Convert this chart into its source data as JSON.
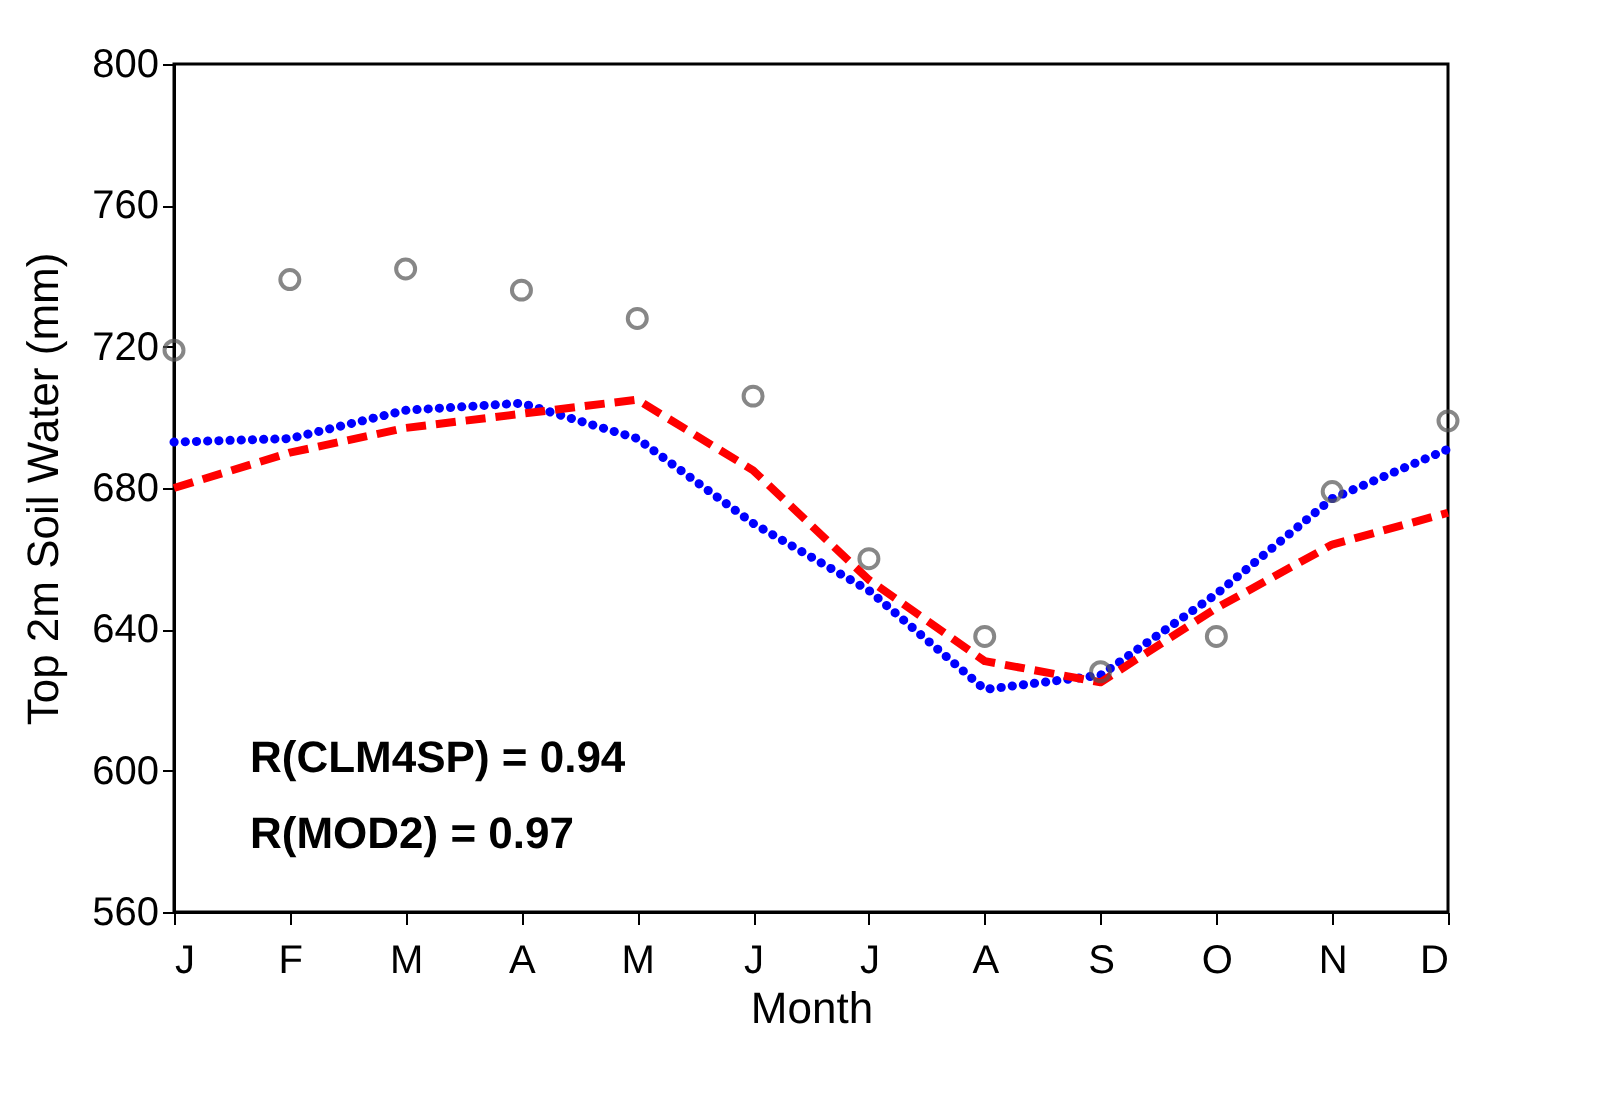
{
  "chart_data": {
    "type": "line",
    "xlabel": "Month",
    "ylabel": "Top 2m Soil Water (mm)",
    "categories": [
      "J",
      "F",
      "M",
      "A",
      "M",
      "J",
      "J",
      "A",
      "S",
      "O",
      "N",
      "D"
    ],
    "ylim": [
      560,
      800
    ],
    "yticks": [
      560,
      600,
      640,
      680,
      720,
      760,
      800
    ],
    "grid": false,
    "series": [
      {
        "type": "scatter",
        "color": "#555555",
        "marker": "circle",
        "values": [
          719,
          739,
          742,
          736,
          728,
          706,
          660,
          638,
          628,
          638,
          679,
          699
        ]
      },
      {
        "color": "#0000ff",
        "line_style": "dotted",
        "values": [
          693,
          694,
          702,
          704,
          694,
          670,
          651,
          623,
          627,
          650,
          677,
          691
        ]
      },
      {
        "color": "#ff0000",
        "line_style": "dashed",
        "values": [
          680,
          690,
          697,
          701,
          705,
          685,
          654,
          631,
          625,
          646,
          664,
          673
        ]
      }
    ],
    "annotations": [
      "R(CLM4SP)  = 0.94",
      "R(MOD2)      = 0.97"
    ]
  }
}
